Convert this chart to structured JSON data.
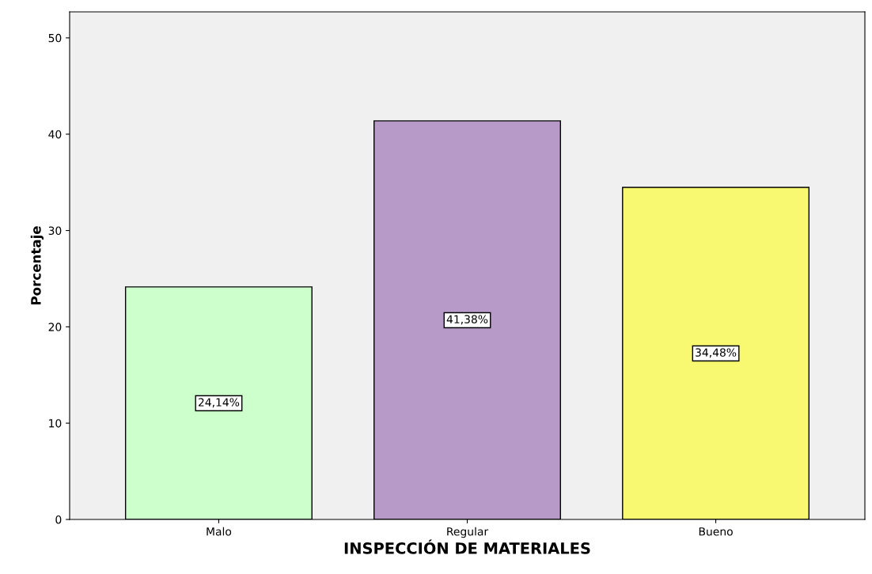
{
  "chart_data": {
    "type": "bar",
    "xlabel": "INSPECCIÓN DE MATERIALES",
    "ylabel": "Porcentaje",
    "categories": [
      "Malo",
      "Regular",
      "Bueno"
    ],
    "values": [
      24.14,
      41.38,
      34.48
    ],
    "colors": [
      "#ccffcc",
      "#b89ac8",
      "#f9f871"
    ],
    "value_labels": [
      "24,14%",
      "41,38%",
      "34,48%"
    ],
    "ylim": [
      0,
      52.7
    ],
    "yticks": [
      0,
      10,
      20,
      30,
      40,
      50
    ],
    "grid": false,
    "legend": false
  }
}
